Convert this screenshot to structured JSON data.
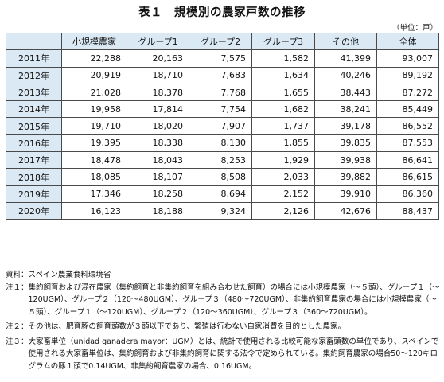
{
  "title": "表１　規模別の農家戸数の推移",
  "unit": "（単位：戸）",
  "table": {
    "headers": [
      "",
      "小規模農家",
      "グループ1",
      "グループ2",
      "グループ3",
      "その他",
      "全体"
    ],
    "rows": [
      {
        "year": "2011年",
        "values": [
          "22,288",
          "20,163",
          "7,575",
          "1,582",
          "41,399",
          "93,007"
        ]
      },
      {
        "year": "2012年",
        "values": [
          "20,919",
          "18,710",
          "7,683",
          "1,634",
          "40,246",
          "89,192"
        ]
      },
      {
        "year": "2013年",
        "values": [
          "21,028",
          "18,378",
          "7,768",
          "1,655",
          "38,443",
          "87,272"
        ]
      },
      {
        "year": "2014年",
        "values": [
          "19,958",
          "17,814",
          "7,754",
          "1,682",
          "38,241",
          "85,449"
        ]
      },
      {
        "year": "2015年",
        "values": [
          "19,710",
          "18,020",
          "7,907",
          "1,737",
          "39,178",
          "86,552"
        ]
      },
      {
        "year": "2016年",
        "values": [
          "19,395",
          "18,338",
          "8,130",
          "1,855",
          "39,835",
          "87,553"
        ]
      },
      {
        "year": "2017年",
        "values": [
          "18,478",
          "18,043",
          "8,253",
          "1,929",
          "39,938",
          "86,641"
        ]
      },
      {
        "year": "2018年",
        "values": [
          "18,085",
          "18,107",
          "8,508",
          "2,033",
          "39,882",
          "86,615"
        ]
      },
      {
        "year": "2019年",
        "values": [
          "17,346",
          "18,258",
          "8,694",
          "2,152",
          "39,910",
          "86,360"
        ]
      },
      {
        "year": "2020年",
        "values": [
          "16,123",
          "18,188",
          "9,324",
          "2,126",
          "42,676",
          "88,437"
        ]
      }
    ]
  },
  "notes": {
    "source_label": "資料：",
    "source_text": "スペイン農業食料環境省",
    "note1_label": "注１：",
    "note1_text": "集約飼育および混在農家（集約飼育と非集約飼育を組み合わせた飼育）の場合には小規模農家（～５頭）、グループ１（～120UGM）、グループ２（120～480UGM）、グループ３（480～720UGM）、非集約飼育農家の場合には小規模農家（～５頭）、グループ１（～120UGM）、グループ２（120～360UGM）、グループ３（360～720UGM）。",
    "note2_label": "注２：",
    "note2_text": "その他は、肥育豚の飼育頭数が３頭以下であり、繁殖は行わない自家消費を目的とした農家。",
    "note3_label": "注３：",
    "note3_text": "大家畜単位（unidad ganadera mayor：UGM）とは、統計で使用される比較可能な家畜頭数の単位であり、スペインで使用される大家畜単位は、集約飼育および非集約飼育に関する法令で定められている。集約飼育農家の場合50～120キログラムの豚１頭で0.14UGM、非集約飼育農家の場合、0.16UGM。"
  }
}
